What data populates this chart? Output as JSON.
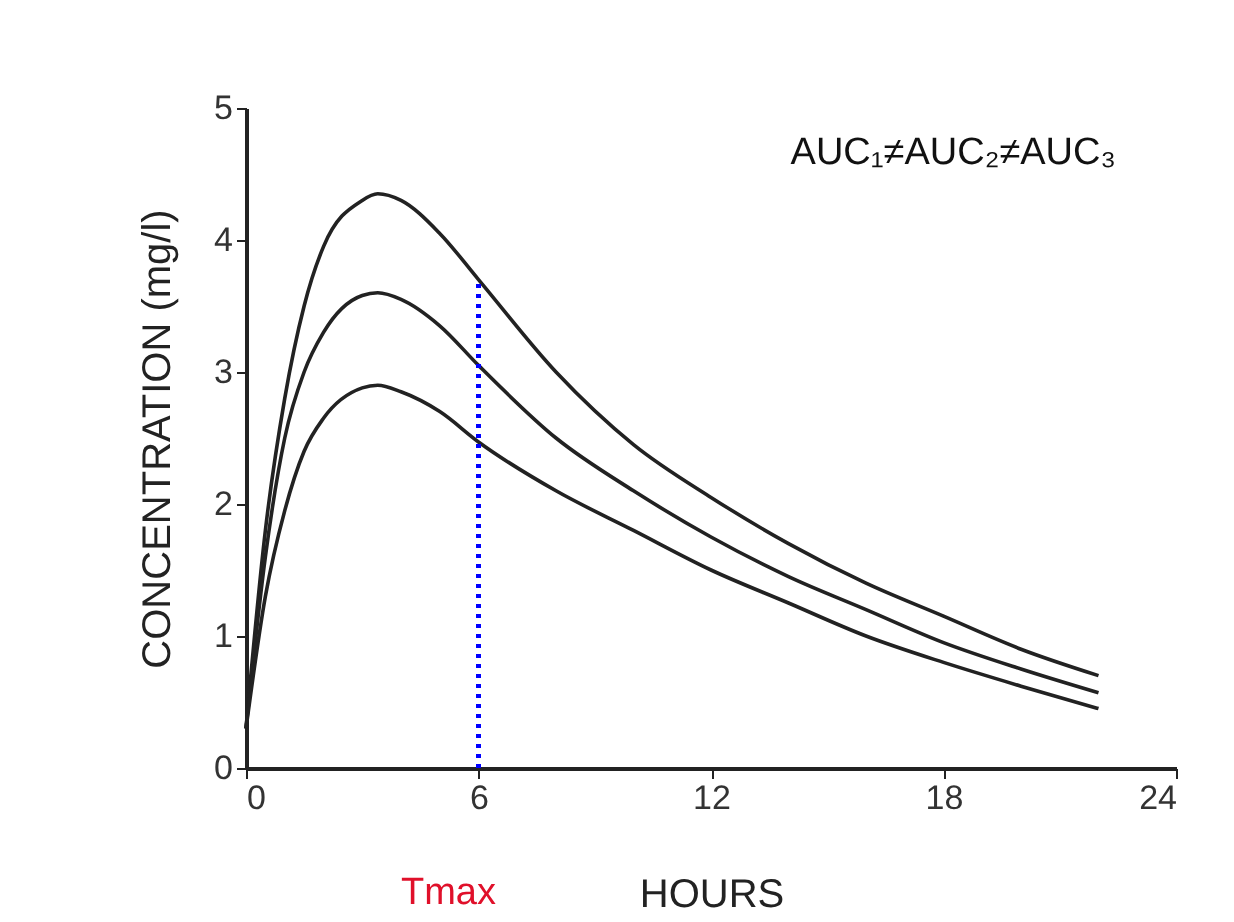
{
  "chart_data": {
    "type": "line",
    "xlabel": "HOURS",
    "ylabel": "CONCENTRATION (mg/l)",
    "x": [
      0,
      0.5,
      1,
      1.5,
      2,
      3,
      3.4,
      4,
      5,
      6,
      8,
      10,
      12,
      14,
      16,
      18,
      20,
      22
    ],
    "series": [
      {
        "color": "#222222",
        "values": [
          0.3,
          1.8,
          2.8,
          3.5,
          3.95,
          4.3,
          4.35,
          4.3,
          4.05,
          3.7,
          3.0,
          2.45,
          2.05,
          1.7,
          1.4,
          1.15,
          0.9,
          0.7
        ]
      },
      {
        "color": "#222222",
        "values": [
          0.3,
          1.6,
          2.5,
          3.0,
          3.3,
          3.58,
          3.6,
          3.55,
          3.35,
          3.05,
          2.5,
          2.1,
          1.75,
          1.45,
          1.2,
          0.95,
          0.75,
          0.57
        ]
      },
      {
        "color": "#222222",
        "values": [
          0.3,
          1.3,
          1.95,
          2.4,
          2.65,
          2.88,
          2.9,
          2.85,
          2.7,
          2.47,
          2.1,
          1.8,
          1.5,
          1.25,
          1.0,
          0.8,
          0.62,
          0.45
        ]
      }
    ],
    "xlim": [
      0,
      24
    ],
    "xticks": [
      0,
      6,
      12,
      18,
      24
    ],
    "ylim": [
      0,
      5
    ],
    "yticks": [
      0,
      1,
      2,
      3,
      4,
      5
    ],
    "ref_lines": [
      {
        "axis": "x",
        "value": 6,
        "label": "Tmax",
        "color": "#0000ff",
        "line_style": "dotted"
      }
    ],
    "annotations": [
      "AUC₁≠AUC₂≠AUC₃"
    ],
    "grid": false,
    "marker": "none",
    "line_style": "solid"
  }
}
